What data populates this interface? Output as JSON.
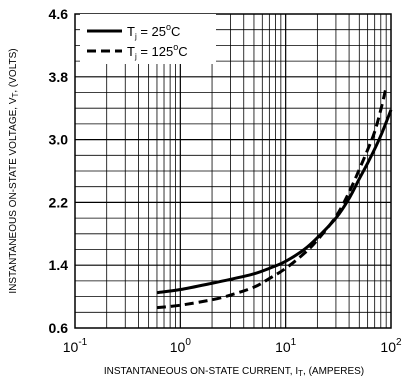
{
  "chart_data": {
    "type": "line",
    "title": "",
    "xlabel": {
      "prefix": "INSTANTANEOUS ON-STATE CURRENT, I",
      "sub": "T",
      "suffix": ", (AMPERES)"
    },
    "ylabel": {
      "prefix": "INSTANTANEOUS ON-STATE VOLTAGE, V",
      "sub": "T",
      "suffix": ", (VOLTS)"
    },
    "x_scale": "log",
    "xlim": [
      0.1,
      100
    ],
    "ylim": [
      0.6,
      4.6
    ],
    "x_ticks": [
      {
        "base": "10",
        "exp": "-1"
      },
      {
        "base": "10",
        "exp": "0"
      },
      {
        "base": "10",
        "exp": "1"
      },
      {
        "base": "10",
        "exp": "2"
      }
    ],
    "y_ticks": [
      "0.6",
      "1.4",
      "2.2",
      "3.0",
      "3.8",
      "4.6"
    ],
    "grid": true,
    "legend_position": "top-left",
    "series": [
      {
        "label": {
          "pre": "T",
          "sub": "j",
          "mid": " = 25",
          "sup": "o",
          "post": "C"
        },
        "style": "solid",
        "x": [
          0.6,
          1,
          2,
          3,
          5,
          7,
          10,
          15,
          20,
          30,
          40,
          50,
          60,
          70,
          80,
          90,
          100
        ],
        "y": [
          1.05,
          1.09,
          1.17,
          1.22,
          1.29,
          1.36,
          1.45,
          1.6,
          1.75,
          2.0,
          2.25,
          2.5,
          2.7,
          2.88,
          3.05,
          3.22,
          3.38
        ]
      },
      {
        "label": {
          "pre": "T",
          "sub": "j",
          "mid": " = 125",
          "sup": "o",
          "post": "C"
        },
        "style": "dashed",
        "x": [
          0.6,
          1,
          2,
          3,
          5,
          7,
          10,
          15,
          20,
          30,
          40,
          50,
          60,
          70,
          80,
          90
        ],
        "y": [
          0.86,
          0.89,
          0.96,
          1.02,
          1.12,
          1.23,
          1.36,
          1.55,
          1.72,
          2.02,
          2.33,
          2.62,
          2.87,
          3.1,
          3.38,
          3.67
        ]
      }
    ]
  }
}
